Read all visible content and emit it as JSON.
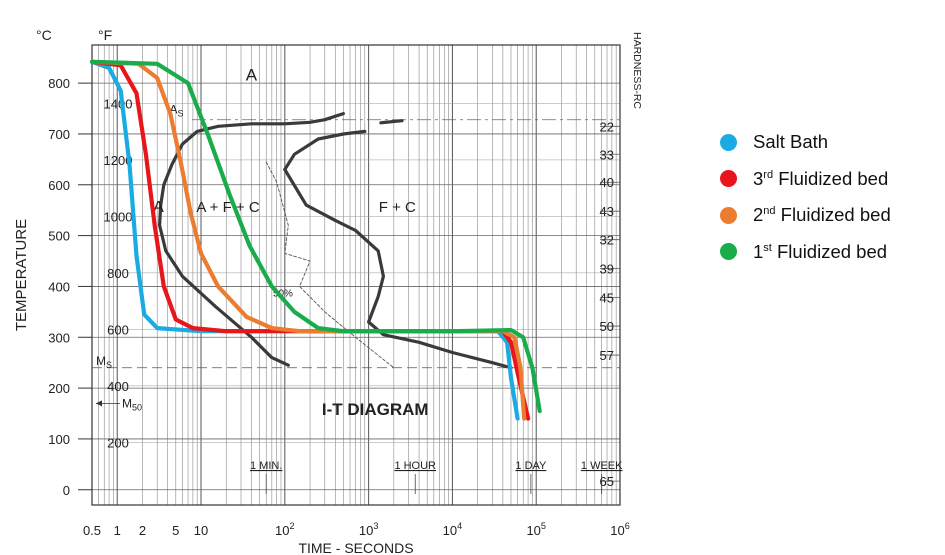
{
  "chart_data": {
    "type": "line",
    "title": "I-T DIAGRAM",
    "xlabel": "TIME - SECONDS",
    "ylabel": "TEMPERATURE",
    "x_scale": "log",
    "xlim": [
      0.5,
      1000000
    ],
    "x_ticks": [
      {
        "value": 0.5,
        "label": "0.5"
      },
      {
        "value": 1,
        "label": "1"
      },
      {
        "value": 2,
        "label": "2"
      },
      {
        "value": 5,
        "label": "5"
      },
      {
        "value": 10,
        "label": "10"
      },
      {
        "value": 100,
        "label": "10^2"
      },
      {
        "value": 1000,
        "label": "10^3"
      },
      {
        "value": 10000,
        "label": "10^4"
      },
      {
        "value": 100000,
        "label": "10^5"
      },
      {
        "value": 1000000,
        "label": "10^6"
      }
    ],
    "time_markers": [
      {
        "value": 60,
        "label": "1 MIN."
      },
      {
        "value": 3600,
        "label": "1 HOUR"
      },
      {
        "value": 86400,
        "label": "1 DAY"
      },
      {
        "value": 604800,
        "label": "1 WEEK"
      }
    ],
    "y_c": {
      "unit": "°C",
      "ylim": [
        -30,
        875
      ],
      "ticks": [
        0,
        100,
        200,
        300,
        400,
        500,
        600,
        700,
        800
      ]
    },
    "y_f": {
      "unit": "°F",
      "ticks": [
        200,
        400,
        600,
        800,
        1000,
        1200,
        1400
      ]
    },
    "hardness": {
      "label": "HARDNESS-RC",
      "marks": [
        {
          "c": 715,
          "value": "22"
        },
        {
          "c": 660,
          "value": "33"
        },
        {
          "c": 605,
          "value": "40"
        },
        {
          "c": 548,
          "value": "43"
        },
        {
          "c": 492,
          "value": "32"
        },
        {
          "c": 435,
          "value": "39"
        },
        {
          "c": 378,
          "value": "45"
        },
        {
          "c": 322,
          "value": "50"
        },
        {
          "c": 265,
          "value": "57"
        },
        {
          "c": 17,
          "value": "65"
        }
      ]
    },
    "annotations": {
      "ms": {
        "label": "Ms",
        "c": 240
      },
      "m50": {
        "label": "M50",
        "c": 170
      },
      "pct50": {
        "label": "50%"
      },
      "a_top": "A",
      "a_left": "A",
      "as": "As",
      "afc": "A + F + C",
      "fc": "F + C"
    },
    "series": [
      {
        "name": "Salt Bath",
        "color": "#1aabe4",
        "points": [
          [
            0.5,
            842
          ],
          [
            0.8,
            830
          ],
          [
            1.1,
            785
          ],
          [
            1.4,
            640
          ],
          [
            1.7,
            460
          ],
          [
            2.1,
            345
          ],
          [
            3,
            318
          ],
          [
            10,
            312
          ],
          [
            1000,
            312
          ],
          [
            10000,
            312
          ],
          [
            35000,
            312
          ],
          [
            45000,
            290
          ],
          [
            50000,
            220
          ],
          [
            60000,
            140
          ]
        ]
      },
      {
        "name": "3rd Fluidized bed",
        "color": "#e8161b",
        "points": [
          [
            0.5,
            842
          ],
          [
            1.1,
            835
          ],
          [
            1.7,
            780
          ],
          [
            2.2,
            660
          ],
          [
            2.8,
            520
          ],
          [
            3.6,
            400
          ],
          [
            5,
            335
          ],
          [
            8,
            318
          ],
          [
            20,
            312
          ],
          [
            1000,
            312
          ],
          [
            10000,
            312
          ],
          [
            40000,
            312
          ],
          [
            50000,
            290
          ],
          [
            60000,
            230
          ],
          [
            80000,
            140
          ]
        ]
      },
      {
        "name": "2nd Fluidized bed",
        "color": "#ec7c30",
        "points": [
          [
            0.5,
            842
          ],
          [
            1.8,
            838
          ],
          [
            3,
            810
          ],
          [
            4.3,
            740
          ],
          [
            5.8,
            640
          ],
          [
            7.5,
            545
          ],
          [
            10,
            465
          ],
          [
            16,
            400
          ],
          [
            35,
            340
          ],
          [
            70,
            318
          ],
          [
            150,
            312
          ],
          [
            1000,
            312
          ],
          [
            10000,
            312
          ],
          [
            40000,
            312
          ],
          [
            55000,
            300
          ],
          [
            65000,
            240
          ],
          [
            72000,
            140
          ]
        ]
      },
      {
        "name": "1st Fluidized bed",
        "color": "#1aab4b",
        "points": [
          [
            0.5,
            842
          ],
          [
            3,
            838
          ],
          [
            7,
            800
          ],
          [
            12,
            700
          ],
          [
            22,
            580
          ],
          [
            38,
            480
          ],
          [
            70,
            400
          ],
          [
            130,
            350
          ],
          [
            250,
            318
          ],
          [
            500,
            312
          ],
          [
            10000,
            312
          ],
          [
            50000,
            314
          ],
          [
            70000,
            300
          ],
          [
            90000,
            240
          ],
          [
            110000,
            155
          ]
        ]
      }
    ],
    "reference_curves": [
      {
        "color": "#3a3a3a",
        "points": [
          [
            3.6,
            600
          ],
          [
            4.5,
            640
          ],
          [
            6,
            680
          ],
          [
            9,
            705
          ],
          [
            16,
            715
          ],
          [
            40,
            720
          ],
          [
            100,
            720
          ],
          [
            200,
            723
          ],
          [
            300,
            728
          ],
          [
            500,
            740
          ]
        ]
      },
      {
        "color": "#3a3a3a",
        "points": [
          [
            3.6,
            600
          ],
          [
            3.3,
            560
          ],
          [
            3.2,
            520
          ],
          [
            3.8,
            470
          ],
          [
            6,
            420
          ],
          [
            15,
            360
          ],
          [
            40,
            300
          ],
          [
            70,
            260
          ],
          [
            110,
            245
          ]
        ]
      },
      {
        "color": "#3a3a3a",
        "points": [
          [
            100,
            630
          ],
          [
            180,
            560
          ],
          [
            400,
            530
          ],
          [
            700,
            510
          ],
          [
            1300,
            470
          ],
          [
            1500,
            420
          ],
          [
            1300,
            380
          ],
          [
            1000,
            330
          ],
          [
            1500,
            305
          ],
          [
            4000,
            290
          ],
          [
            10000,
            270
          ],
          [
            30000,
            250
          ],
          [
            50000,
            240
          ]
        ]
      },
      {
        "color": "#3a3a3a",
        "points": [
          [
            100,
            630
          ],
          [
            130,
            660
          ],
          [
            250,
            690
          ],
          [
            500,
            700
          ],
          [
            900,
            705
          ]
        ]
      },
      {
        "color": "#3a3a3a",
        "points": [
          [
            1400,
            722
          ],
          [
            2500,
            726
          ]
        ]
      }
    ],
    "fifty_pct_curve": {
      "color": "#555555",
      "points": [
        [
          60,
          645
        ],
        [
          80,
          605
        ],
        [
          110,
          520
        ],
        [
          100,
          465
        ],
        [
          200,
          450
        ],
        [
          150,
          400
        ],
        [
          300,
          350
        ],
        [
          700,
          300
        ],
        [
          2000,
          240
        ]
      ]
    },
    "legend": {
      "position": "right"
    }
  }
}
